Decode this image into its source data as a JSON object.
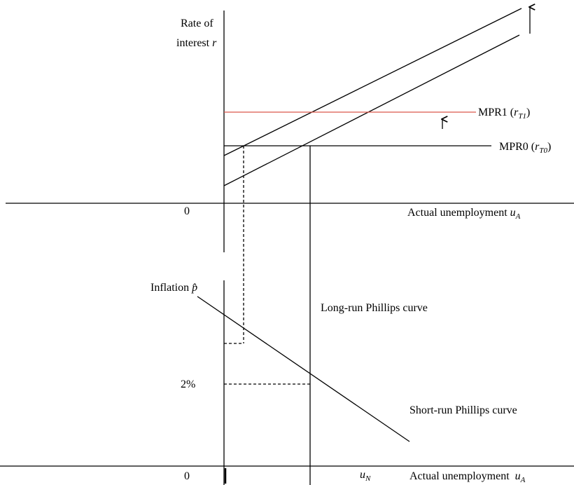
{
  "upper_panel": {
    "y_label_line1": "Rate of",
    "y_label_line2": "interest ",
    "y_label_var": "r",
    "origin": "0",
    "x_label": "Actual unemployment ",
    "x_label_var": "u",
    "x_label_sub": "A"
  },
  "policy_rules": [
    {
      "name": "MPR1 (",
      "var": "r",
      "sub": "T1",
      "close": ")"
    },
    {
      "name": "MPR0 (",
      "var": "r",
      "sub": "T0",
      "close": ")"
    }
  ],
  "lower_panel": {
    "y_label": "Inflation ",
    "y_label_var": "p̂",
    "tick_label": "2%",
    "origin": "0",
    "natural_var": "u",
    "natural_sub": "N",
    "x_label": "Actual unemployment  ",
    "x_label_var": "u",
    "x_label_sub": "A"
  },
  "curves": {
    "long_run": "Long-run Phillips curve",
    "short_run": "Short-run Phillips curve"
  }
}
